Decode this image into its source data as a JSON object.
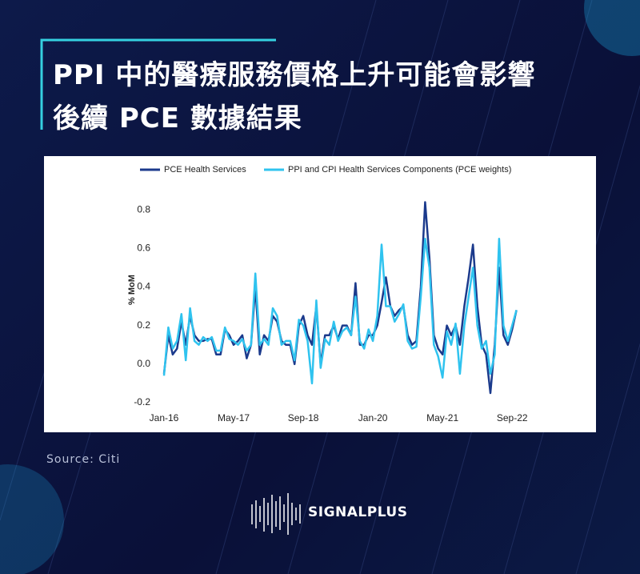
{
  "header": {
    "title_lines": [
      "PPI 中的醫療服務價格上升可能會影響",
      "後續 PCE 數據結果"
    ]
  },
  "chart_data": {
    "type": "line",
    "y_label": "% MoM",
    "categories": [
      "Jan-16",
      null,
      null,
      null,
      null,
      null,
      null,
      null,
      null,
      null,
      null,
      null,
      null,
      null,
      null,
      null,
      "May-17",
      null,
      null,
      null,
      null,
      null,
      null,
      null,
      null,
      null,
      null,
      null,
      null,
      null,
      null,
      null,
      "Sep-18",
      null,
      null,
      null,
      null,
      null,
      null,
      null,
      null,
      null,
      null,
      null,
      null,
      null,
      null,
      null,
      "Jan-20",
      null,
      null,
      null,
      null,
      null,
      null,
      null,
      null,
      null,
      null,
      null,
      null,
      null,
      null,
      null,
      "May-21",
      null,
      null,
      null,
      null,
      null,
      null,
      null,
      null,
      null,
      null,
      null,
      null,
      null,
      null,
      null,
      "Sep-22",
      null
    ],
    "series": [
      {
        "name": "PCE Health Services",
        "color": "#1b3a8c",
        "values": [
          -0.05,
          0.15,
          0.05,
          0.08,
          0.22,
          0.1,
          0.25,
          0.15,
          0.12,
          0.12,
          0.13,
          0.13,
          0.05,
          0.05,
          0.18,
          0.15,
          0.1,
          0.12,
          0.15,
          0.03,
          0.1,
          0.4,
          0.05,
          0.15,
          0.12,
          0.25,
          0.22,
          0.12,
          0.1,
          0.1,
          0.0,
          0.2,
          0.25,
          0.15,
          0.1,
          0.3,
          0.0,
          0.15,
          0.15,
          0.2,
          0.13,
          0.2,
          0.2,
          0.15,
          0.42,
          0.1,
          0.1,
          0.15,
          0.15,
          0.2,
          0.32,
          0.45,
          0.3,
          0.25,
          0.28,
          0.3,
          0.15,
          0.1,
          0.12,
          0.4,
          0.84,
          0.55,
          0.15,
          0.08,
          0.05,
          0.2,
          0.15,
          0.2,
          0.1,
          0.3,
          0.45,
          0.62,
          0.3,
          0.1,
          0.05,
          -0.15,
          0.1,
          0.5,
          0.15,
          0.1,
          0.18,
          0.28
        ]
      },
      {
        "name": "PPI and CPI Health Services Components (PCE weights)",
        "color": "#2fc3ef",
        "values": [
          -0.06,
          0.19,
          0.08,
          0.12,
          0.26,
          0.02,
          0.29,
          0.12,
          0.1,
          0.14,
          0.12,
          0.14,
          0.07,
          0.07,
          0.19,
          0.13,
          0.12,
          0.1,
          0.13,
          0.07,
          0.1,
          0.47,
          0.1,
          0.13,
          0.1,
          0.29,
          0.25,
          0.1,
          0.12,
          0.12,
          0.02,
          0.23,
          0.2,
          0.12,
          -0.1,
          0.33,
          -0.02,
          0.13,
          0.1,
          0.22,
          0.12,
          0.17,
          0.19,
          0.15,
          0.35,
          0.12,
          0.08,
          0.18,
          0.12,
          0.25,
          0.62,
          0.3,
          0.3,
          0.22,
          0.26,
          0.31,
          0.12,
          0.08,
          0.09,
          0.35,
          0.65,
          0.5,
          0.1,
          0.04,
          -0.07,
          0.17,
          0.1,
          0.21,
          -0.05,
          0.2,
          0.35,
          0.5,
          0.2,
          0.08,
          0.12,
          -0.05,
          0.05,
          0.65,
          0.2,
          0.12,
          0.2,
          0.28
        ]
      }
    ],
    "ylim": [
      -0.2,
      0.9
    ],
    "yticks": [
      -0.2,
      {
        "value": 0,
        "label": "0.0"
      },
      0.2,
      0.4,
      0.6,
      0.8
    ],
    "grid": false,
    "legend": "top"
  },
  "source": "Source:  Citi",
  "brand": "SIGNALPLUS"
}
